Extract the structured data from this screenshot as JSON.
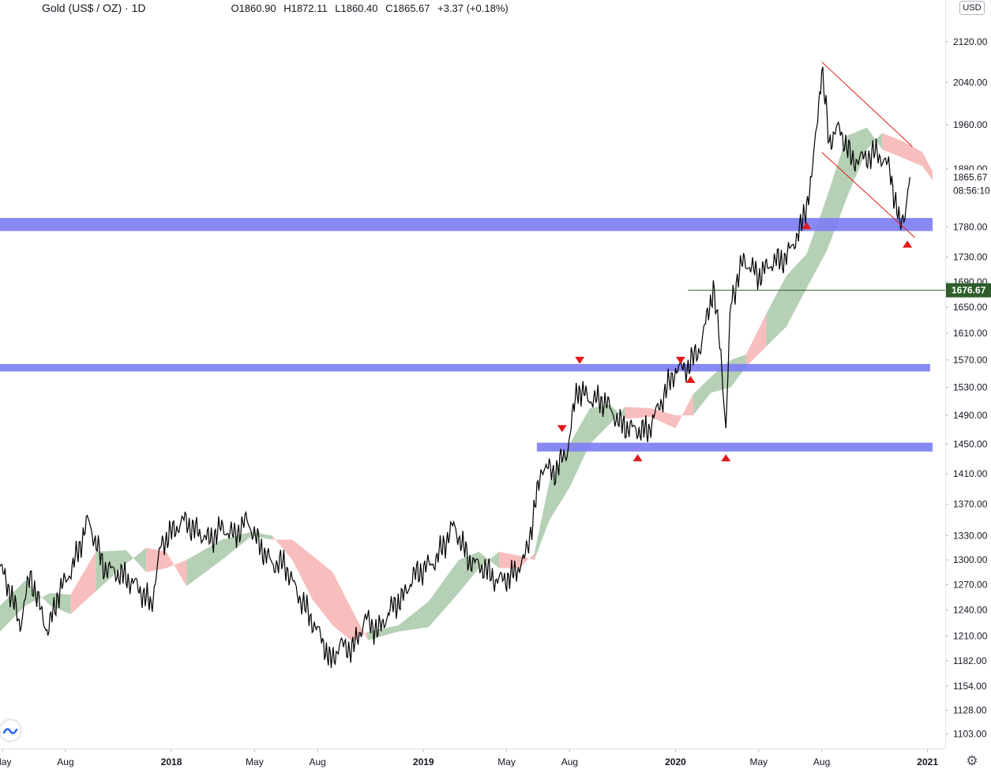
{
  "header": {
    "symbol_title": "Gold (US$ / OZ) · 1D",
    "open": "O1860.90",
    "high": "H1872.11",
    "low": "L1860.40",
    "close": "C1865.67",
    "change": "+3.37 (+0.18%)"
  },
  "currency": "USD",
  "chart_data": {
    "type": "line",
    "instrument": "Gold (US$ / OZ)",
    "timeframe": "1D",
    "x_unit": "fractional year",
    "xlim": [
      2017.32,
      2021.07
    ],
    "y_scale": "log",
    "ylim": [
      1088,
      2205
    ],
    "time_ticks": [
      {
        "label": "May",
        "t": 2017.33
      },
      {
        "label": "Aug",
        "t": 2017.58
      },
      {
        "label": "2018",
        "t": 2018.0
      },
      {
        "label": "May",
        "t": 2018.33
      },
      {
        "label": "Aug",
        "t": 2018.58
      },
      {
        "label": "2019",
        "t": 2019.0
      },
      {
        "label": "May",
        "t": 2019.33
      },
      {
        "label": "Aug",
        "t": 2019.58
      },
      {
        "label": "2020",
        "t": 2020.0
      },
      {
        "label": "May",
        "t": 2020.33
      },
      {
        "label": "Aug",
        "t": 2020.58
      },
      {
        "label": "2021",
        "t": 2021.0
      }
    ],
    "price_ticks": [
      {
        "label": "2120.00",
        "v": 2120
      },
      {
        "label": "2040.00",
        "v": 2040
      },
      {
        "label": "1960.00",
        "v": 1960
      },
      {
        "label": "1880.00",
        "v": 1880
      },
      {
        "label": "1780.00",
        "v": 1780
      },
      {
        "label": "1730.00",
        "v": 1730
      },
      {
        "label": "1690.00",
        "v": 1690
      },
      {
        "label": "1650.00",
        "v": 1650
      },
      {
        "label": "1610.00",
        "v": 1610
      },
      {
        "label": "1570.00",
        "v": 1570
      },
      {
        "label": "1530.00",
        "v": 1530
      },
      {
        "label": "1490.00",
        "v": 1490
      },
      {
        "label": "1450.00",
        "v": 1450
      },
      {
        "label": "1410.00",
        "v": 1410
      },
      {
        "label": "1370.00",
        "v": 1370
      },
      {
        "label": "1330.00",
        "v": 1330
      },
      {
        "label": "1300.00",
        "v": 1300
      },
      {
        "label": "1270.00",
        "v": 1270
      },
      {
        "label": "1240.00",
        "v": 1240
      },
      {
        "label": "1210.00",
        "v": 1210
      },
      {
        "label": "1182.00",
        "v": 1182
      },
      {
        "label": "1154.00",
        "v": 1154
      },
      {
        "label": "1128.00",
        "v": 1128
      },
      {
        "label": "1103.00",
        "v": 1103
      }
    ],
    "price_series": {
      "name": "",
      "color": "#000000",
      "points": [
        [
          2017.32,
          1292
        ],
        [
          2017.36,
          1262
        ],
        [
          2017.4,
          1222
        ],
        [
          2017.44,
          1283
        ],
        [
          2017.47,
          1251
        ],
        [
          2017.51,
          1214
        ],
        [
          2017.55,
          1258
        ],
        [
          2017.61,
          1292
        ],
        [
          2017.67,
          1350
        ],
        [
          2017.73,
          1292
        ],
        [
          2017.8,
          1282
        ],
        [
          2017.86,
          1270
        ],
        [
          2017.92,
          1245
        ],
        [
          2017.96,
          1320
        ],
        [
          2018.05,
          1350
        ],
        [
          2018.1,
          1335
        ],
        [
          2018.15,
          1325
        ],
        [
          2018.2,
          1340
        ],
        [
          2018.25,
          1330
        ],
        [
          2018.3,
          1350
        ],
        [
          2018.35,
          1318
        ],
        [
          2018.4,
          1295
        ],
        [
          2018.45,
          1295
        ],
        [
          2018.5,
          1260
        ],
        [
          2018.55,
          1232
        ],
        [
          2018.6,
          1205
        ],
        [
          2018.63,
          1180
        ],
        [
          2018.67,
          1200
        ],
        [
          2018.72,
          1195
        ],
        [
          2018.77,
          1230
        ],
        [
          2018.82,
          1215
        ],
        [
          2018.88,
          1245
        ],
        [
          2018.92,
          1255
        ],
        [
          2018.96,
          1280
        ],
        [
          2019.05,
          1300
        ],
        [
          2019.12,
          1343
        ],
        [
          2019.18,
          1300
        ],
        [
          2019.24,
          1290
        ],
        [
          2019.29,
          1275
        ],
        [
          2019.35,
          1280
        ],
        [
          2019.4,
          1300
        ],
        [
          2019.43,
          1343
        ],
        [
          2019.47,
          1420
        ],
        [
          2019.52,
          1412
        ],
        [
          2019.57,
          1440
        ],
        [
          2019.61,
          1528
        ],
        [
          2019.66,
          1513
        ],
        [
          2019.72,
          1510
        ],
        [
          2019.78,
          1478
        ],
        [
          2019.84,
          1470
        ],
        [
          2019.89,
          1468
        ],
        [
          2019.95,
          1515
        ],
        [
          2020.0,
          1555
        ],
        [
          2020.05,
          1560
        ],
        [
          2020.1,
          1590
        ],
        [
          2020.15,
          1680
        ],
        [
          2020.18,
          1580
        ],
        [
          2020.2,
          1470
        ],
        [
          2020.22,
          1660
        ],
        [
          2020.27,
          1725
        ],
        [
          2020.33,
          1700
        ],
        [
          2020.38,
          1720
        ],
        [
          2020.44,
          1730
        ],
        [
          2020.5,
          1780
        ],
        [
          2020.54,
          1860
        ],
        [
          2020.58,
          2063
        ],
        [
          2020.61,
          1930
        ],
        [
          2020.65,
          1955
        ],
        [
          2020.7,
          1895
        ],
        [
          2020.75,
          1900
        ],
        [
          2020.8,
          1910
        ],
        [
          2020.85,
          1880
        ],
        [
          2020.89,
          1780
        ],
        [
          2020.91,
          1805
        ],
        [
          2020.93,
          1865.67
        ]
      ]
    },
    "kumo": [
      {
        "t": 2017.32,
        "a": 1215,
        "b": 1245,
        "color": "green"
      },
      {
        "t": 2017.42,
        "a": 1245,
        "b": 1275,
        "color": "green"
      },
      {
        "t": 2017.52,
        "a": 1260,
        "b": 1245,
        "color": "green"
      },
      {
        "t": 2017.6,
        "a": 1258,
        "b": 1235,
        "color": "red"
      },
      {
        "t": 2017.7,
        "a": 1310,
        "b": 1262,
        "color": "green"
      },
      {
        "t": 2017.82,
        "a": 1312,
        "b": 1295,
        "color": "green"
      },
      {
        "t": 2017.9,
        "a": 1285,
        "b": 1315,
        "color": "red"
      },
      {
        "t": 2017.98,
        "a": 1290,
        "b": 1310,
        "color": "red"
      },
      {
        "t": 2018.06,
        "a": 1300,
        "b": 1268,
        "color": "green"
      },
      {
        "t": 2018.2,
        "a": 1325,
        "b": 1300,
        "color": "green"
      },
      {
        "t": 2018.32,
        "a": 1335,
        "b": 1330,
        "color": "green"
      },
      {
        "t": 2018.4,
        "a": 1330,
        "b": 1325,
        "color": "red"
      },
      {
        "t": 2018.48,
        "a": 1300,
        "b": 1325,
        "color": "red"
      },
      {
        "t": 2018.56,
        "a": 1252,
        "b": 1305,
        "color": "red"
      },
      {
        "t": 2018.64,
        "a": 1222,
        "b": 1285,
        "color": "red"
      },
      {
        "t": 2018.72,
        "a": 1203,
        "b": 1238,
        "color": "red"
      },
      {
        "t": 2018.78,
        "a": 1215,
        "b": 1205,
        "color": "green"
      },
      {
        "t": 2018.9,
        "a": 1222,
        "b": 1215,
        "color": "green"
      },
      {
        "t": 2019.02,
        "a": 1250,
        "b": 1220,
        "color": "green"
      },
      {
        "t": 2019.14,
        "a": 1300,
        "b": 1260,
        "color": "green"
      },
      {
        "t": 2019.22,
        "a": 1310,
        "b": 1290,
        "color": "green"
      },
      {
        "t": 2019.3,
        "a": 1290,
        "b": 1310,
        "color": "red"
      },
      {
        "t": 2019.38,
        "a": 1290,
        "b": 1305,
        "color": "red"
      },
      {
        "t": 2019.44,
        "a": 1308,
        "b": 1300,
        "color": "green"
      },
      {
        "t": 2019.5,
        "a": 1400,
        "b": 1350,
        "color": "green"
      },
      {
        "t": 2019.58,
        "a": 1450,
        "b": 1392,
        "color": "green"
      },
      {
        "t": 2019.66,
        "a": 1500,
        "b": 1450,
        "color": "green"
      },
      {
        "t": 2019.74,
        "a": 1505,
        "b": 1478,
        "color": "green"
      },
      {
        "t": 2019.8,
        "a": 1485,
        "b": 1502,
        "color": "red"
      },
      {
        "t": 2019.9,
        "a": 1488,
        "b": 1500,
        "color": "red"
      },
      {
        "t": 2020.0,
        "a": 1472,
        "b": 1490,
        "color": "red"
      },
      {
        "t": 2020.07,
        "a": 1520,
        "b": 1490,
        "color": "green"
      },
      {
        "t": 2020.14,
        "a": 1545,
        "b": 1522,
        "color": "green"
      },
      {
        "t": 2020.22,
        "a": 1570,
        "b": 1530,
        "color": "green"
      },
      {
        "t": 2020.28,
        "a": 1578,
        "b": 1560,
        "color": "red"
      },
      {
        "t": 2020.36,
        "a": 1640,
        "b": 1590,
        "color": "green"
      },
      {
        "t": 2020.44,
        "a": 1700,
        "b": 1620,
        "color": "green"
      },
      {
        "t": 2020.52,
        "a": 1735,
        "b": 1680,
        "color": "green"
      },
      {
        "t": 2020.6,
        "a": 1830,
        "b": 1740,
        "color": "green"
      },
      {
        "t": 2020.68,
        "a": 1940,
        "b": 1830,
        "color": "green"
      },
      {
        "t": 2020.76,
        "a": 1955,
        "b": 1915,
        "color": "green"
      },
      {
        "t": 2020.82,
        "a": 1915,
        "b": 1945,
        "color": "red"
      },
      {
        "t": 2020.9,
        "a": 1900,
        "b": 1930,
        "color": "red"
      },
      {
        "t": 2020.98,
        "a": 1885,
        "b": 1910,
        "color": "red"
      },
      {
        "t": 2021.02,
        "a": 1860,
        "b": 1875,
        "color": "red"
      }
    ],
    "support_resistance_zones": [
      {
        "low": 1773,
        "high": 1795,
        "t_start": 2017.32,
        "t_end": 2021.02
      },
      {
        "low": 1553,
        "high": 1564,
        "t_start": 2017.32,
        "t_end": 2021.01
      },
      {
        "low": 1440,
        "high": 1452,
        "t_start": 2019.45,
        "t_end": 2021.02
      }
    ],
    "down_channel": {
      "upper": [
        [
          2020.58,
          2080
        ],
        [
          2020.94,
          1920
        ]
      ],
      "lower": [
        [
          2020.58,
          1910
        ],
        [
          2020.95,
          1762
        ]
      ]
    },
    "horizontal_line": {
      "value": 1676.67,
      "t_start": 2020.05,
      "color": "#2e5e2a"
    },
    "markers": [
      {
        "t": 2019.55,
        "v": 1472,
        "dir": "down"
      },
      {
        "t": 2019.62,
        "v": 1570,
        "dir": "down"
      },
      {
        "t": 2019.85,
        "v": 1432,
        "dir": "up"
      },
      {
        "t": 2020.02,
        "v": 1570,
        "dir": "down"
      },
      {
        "t": 2020.06,
        "v": 1542,
        "dir": "up"
      },
      {
        "t": 2020.2,
        "v": 1432,
        "dir": "up"
      },
      {
        "t": 2020.52,
        "v": 1783,
        "dir": "up"
      },
      {
        "t": 2020.92,
        "v": 1752,
        "dir": "up"
      }
    ],
    "price_labels": {
      "last_price": "1865.67",
      "countdown": "08:56:10",
      "line_price": "1676.67"
    },
    "colors": {
      "kumo_green": "#a8c8a8",
      "kumo_red": "#f6a7a7",
      "zone": "#7b7cf3",
      "channel": "#e31a1a",
      "marker": "#e31a1a",
      "last_price_tag": "#2e5e2a"
    }
  }
}
